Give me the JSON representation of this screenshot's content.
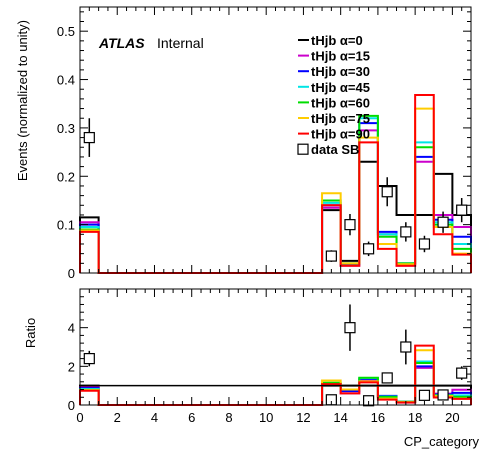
{
  "figure": {
    "atlas_label": "ATLAS",
    "atlas_status": "Internal",
    "xlabel": "CP_category"
  },
  "chart_data": [
    {
      "type": "step",
      "ylabel": "Events (normalized to unity)",
      "xlim": [
        0,
        21
      ],
      "ylim": [
        0,
        0.55
      ],
      "yticks": [
        "0",
        "0.1",
        "0.2",
        "0.3",
        "0.4",
        "0.5"
      ],
      "grid": false,
      "legend_position": "top-right",
      "bin_edges": [
        0,
        1,
        2,
        3,
        4,
        5,
        6,
        7,
        8,
        9,
        10,
        11,
        12,
        13,
        14,
        15,
        16,
        17,
        18,
        19,
        20,
        21
      ],
      "series": [
        {
          "name": "tHjb α=0",
          "color": "#000000",
          "values": [
            0.115,
            0,
            0,
            0,
            0,
            0,
            0,
            0,
            0,
            0,
            0,
            0,
            0,
            0.13,
            0.025,
            0.23,
            0.18,
            0.12,
            0.12,
            0.205,
            0.12
          ]
        },
        {
          "name": "tHjb α=15",
          "color": "#cc00cc",
          "values": [
            0.105,
            0,
            0,
            0,
            0,
            0,
            0,
            0,
            0,
            0,
            0,
            0,
            0,
            0.135,
            0.015,
            0.295,
            0.08,
            0.015,
            0.23,
            0.12,
            0.095
          ]
        },
        {
          "name": "tHjb α=30",
          "color": "#0000ff",
          "values": [
            0.1,
            0,
            0,
            0,
            0,
            0,
            0,
            0,
            0,
            0,
            0,
            0,
            0,
            0.14,
            0.018,
            0.31,
            0.085,
            0.02,
            0.24,
            0.11,
            0.075
          ]
        },
        {
          "name": "tHjb α=45",
          "color": "#00e5e5",
          "values": [
            0.095,
            0,
            0,
            0,
            0,
            0,
            0,
            0,
            0,
            0,
            0,
            0,
            0,
            0.145,
            0.02,
            0.32,
            0.08,
            0.02,
            0.27,
            0.105,
            0.06
          ]
        },
        {
          "name": "tHjb α=60",
          "color": "#00dd00",
          "values": [
            0.09,
            0,
            0,
            0,
            0,
            0,
            0,
            0,
            0,
            0,
            0,
            0,
            0,
            0.15,
            0.02,
            0.325,
            0.075,
            0.02,
            0.26,
            0.1,
            0.05
          ]
        },
        {
          "name": "tHjb α=75",
          "color": "#ffcc00",
          "values": [
            0.088,
            0,
            0,
            0,
            0,
            0,
            0,
            0,
            0,
            0,
            0,
            0,
            0,
            0.165,
            0.02,
            0.28,
            0.06,
            0.018,
            0.34,
            0.095,
            0.04
          ]
        },
        {
          "name": "tHjb α=90",
          "color": "#ff0000",
          "values": [
            0.085,
            0,
            0,
            0,
            0,
            0,
            0,
            0,
            0,
            0,
            0,
            0,
            0,
            0.14,
            0.015,
            0.27,
            0.05,
            0.015,
            0.368,
            0.08,
            0.038
          ]
        }
      ],
      "data_points": {
        "name": "data SB",
        "points": [
          {
            "x": 0.5,
            "y": 0.28,
            "err": 0.04
          },
          {
            "x": 13.5,
            "y": 0.035,
            "err": 0.012
          },
          {
            "x": 14.5,
            "y": 0.1,
            "err": 0.022
          },
          {
            "x": 15.5,
            "y": 0.05,
            "err": 0.015
          },
          {
            "x": 16.5,
            "y": 0.168,
            "err": 0.03
          },
          {
            "x": 17.5,
            "y": 0.085,
            "err": 0.02
          },
          {
            "x": 18.5,
            "y": 0.06,
            "err": 0.017
          },
          {
            "x": 19.5,
            "y": 0.105,
            "err": 0.022
          },
          {
            "x": 20.5,
            "y": 0.13,
            "err": 0.025
          }
        ]
      }
    },
    {
      "type": "step",
      "ylabel": "Ratio",
      "xlim": [
        0,
        21
      ],
      "ylim": [
        0,
        6
      ],
      "yticks": [
        "0",
        "2",
        "4"
      ],
      "xticks": [
        "0",
        "2",
        "4",
        "6",
        "8",
        "10",
        "12",
        "14",
        "16",
        "18",
        "20"
      ],
      "grid": false,
      "bin_edges": [
        0,
        1,
        2,
        3,
        4,
        5,
        6,
        7,
        8,
        9,
        10,
        11,
        12,
        13,
        14,
        15,
        16,
        17,
        18,
        19,
        20,
        21
      ],
      "series": [
        {
          "name": "tHjb α=0",
          "color": "#000000",
          "values": [
            1,
            0,
            0,
            0,
            0,
            0,
            0,
            0,
            0,
            0,
            0,
            0,
            0,
            1,
            1,
            1,
            1,
            1,
            1,
            1,
            1
          ]
        },
        {
          "name": "tHjb α=15",
          "color": "#cc00cc",
          "values": [
            0.91,
            0,
            0,
            0,
            0,
            0,
            0,
            0,
            0,
            0,
            0,
            0,
            0,
            1.04,
            0.6,
            1.28,
            0.44,
            0.12,
            1.92,
            0.59,
            0.79
          ]
        },
        {
          "name": "tHjb α=30",
          "color": "#0000ff",
          "values": [
            0.87,
            0,
            0,
            0,
            0,
            0,
            0,
            0,
            0,
            0,
            0,
            0,
            0,
            1.08,
            0.72,
            1.35,
            0.47,
            0.17,
            2.0,
            0.54,
            0.63
          ]
        },
        {
          "name": "tHjb α=45",
          "color": "#00e5e5",
          "values": [
            0.83,
            0,
            0,
            0,
            0,
            0,
            0,
            0,
            0,
            0,
            0,
            0,
            0,
            1.12,
            0.8,
            1.39,
            0.44,
            0.17,
            2.25,
            0.51,
            0.5
          ]
        },
        {
          "name": "tHjb α=60",
          "color": "#00dd00",
          "values": [
            0.78,
            0,
            0,
            0,
            0,
            0,
            0,
            0,
            0,
            0,
            0,
            0,
            0,
            1.15,
            0.8,
            1.41,
            0.42,
            0.17,
            2.17,
            0.49,
            0.42
          ]
        },
        {
          "name": "tHjb α=75",
          "color": "#ffcc00",
          "values": [
            0.77,
            0,
            0,
            0,
            0,
            0,
            0,
            0,
            0,
            0,
            0,
            0,
            0,
            1.27,
            0.8,
            1.22,
            0.33,
            0.15,
            2.83,
            0.46,
            0.33
          ]
        },
        {
          "name": "tHjb α=90",
          "color": "#ff0000",
          "values": [
            0.74,
            0,
            0,
            0,
            0,
            0,
            0,
            0,
            0,
            0,
            0,
            0,
            0,
            1.08,
            0.6,
            1.17,
            0.28,
            0.13,
            3.07,
            0.39,
            0.32
          ]
        }
      ],
      "data_points": {
        "name": "data SB",
        "points": [
          {
            "x": 0.5,
            "y": 2.4,
            "err": 0.4
          },
          {
            "x": 13.5,
            "y": 0.27,
            "err": 0.1
          },
          {
            "x": 14.5,
            "y": 4.0,
            "err": 1.2
          },
          {
            "x": 15.5,
            "y": 0.22,
            "err": 0.07
          },
          {
            "x": 16.5,
            "y": 1.4,
            "err": 0.25
          },
          {
            "x": 17.5,
            "y": 3.0,
            "err": 0.9
          },
          {
            "x": 18.5,
            "y": 0.5,
            "err": 0.15
          },
          {
            "x": 19.5,
            "y": 0.52,
            "err": 0.12
          },
          {
            "x": 20.5,
            "y": 1.65,
            "err": 0.35
          }
        ]
      }
    }
  ]
}
